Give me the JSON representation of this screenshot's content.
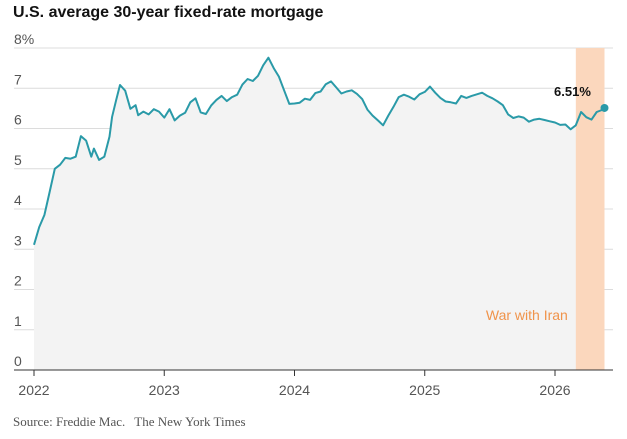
{
  "title": "U.S. average 30-year fixed-rate mortgage",
  "source": {
    "label": "Source: Freddie Mac.",
    "publisher": "The New York Times"
  },
  "chart_data": {
    "type": "line",
    "title": "U.S. average 30-year fixed-rate mortgage",
    "xlabel": "",
    "ylabel": "",
    "ylim": [
      0,
      8
    ],
    "xlim": [
      2022.0,
      2026.5
    ],
    "y_ticks": [
      0,
      1,
      2,
      3,
      4,
      5,
      6,
      7,
      8
    ],
    "y_tick_labels": [
      "0",
      "1",
      "2",
      "3",
      "4",
      "5",
      "6",
      "7",
      "8%"
    ],
    "x_ticks": [
      2022,
      2023,
      2024,
      2025,
      2026
    ],
    "x_tick_labels": [
      "2022",
      "2023",
      "2024",
      "2025",
      "2026"
    ],
    "grid": "horizontal",
    "series": [
      {
        "color": "#2a9aa8",
        "x": [
          2022.0,
          2022.04,
          2022.08,
          2022.12,
          2022.16,
          2022.2,
          2022.24,
          2022.28,
          2022.32,
          2022.36,
          2022.4,
          2022.44,
          2022.46,
          2022.5,
          2022.54,
          2022.58,
          2022.6,
          2022.63,
          2022.66,
          2022.7,
          2022.74,
          2022.78,
          2022.8,
          2022.84,
          2022.88,
          2022.92,
          2022.96,
          2023.0,
          2023.04,
          2023.08,
          2023.12,
          2023.16,
          2023.2,
          2023.24,
          2023.28,
          2023.32,
          2023.36,
          2023.4,
          2023.44,
          2023.48,
          2023.52,
          2023.56,
          2023.6,
          2023.64,
          2023.68,
          2023.72,
          2023.76,
          2023.8,
          2023.84,
          2023.88,
          2023.92,
          2023.96,
          2024.0,
          2024.04,
          2024.08,
          2024.12,
          2024.16,
          2024.2,
          2024.24,
          2024.28,
          2024.32,
          2024.36,
          2024.4,
          2024.44,
          2024.48,
          2024.52,
          2024.56,
          2024.6,
          2024.64,
          2024.68,
          2024.72,
          2024.76,
          2024.8,
          2024.84,
          2024.88,
          2024.92,
          2024.96,
          2025.0,
          2025.04,
          2025.08,
          2025.12,
          2025.16,
          2025.2,
          2025.24,
          2025.28,
          2025.32,
          2025.36,
          2025.4,
          2025.44,
          2025.48,
          2025.52,
          2025.56,
          2025.6,
          2025.64,
          2025.68,
          2025.72,
          2025.76,
          2025.8,
          2025.84,
          2025.88,
          2025.92,
          2025.96,
          2026.0,
          2026.04,
          2026.08,
          2026.12,
          2026.16,
          2026.2,
          2026.24,
          2026.28,
          2026.32,
          2026.36,
          2026.38
        ],
        "values": [
          3.11,
          3.55,
          3.85,
          4.42,
          5.0,
          5.1,
          5.27,
          5.25,
          5.3,
          5.81,
          5.7,
          5.3,
          5.5,
          5.22,
          5.3,
          5.8,
          6.29,
          6.7,
          7.08,
          6.94,
          6.49,
          6.58,
          6.33,
          6.42,
          6.35,
          6.48,
          6.42,
          6.27,
          6.48,
          6.2,
          6.32,
          6.39,
          6.65,
          6.75,
          6.4,
          6.36,
          6.57,
          6.71,
          6.81,
          6.68,
          6.78,
          6.84,
          7.09,
          7.23,
          7.18,
          7.31,
          7.57,
          7.76,
          7.5,
          7.29,
          6.95,
          6.61,
          6.62,
          6.64,
          6.74,
          6.71,
          6.88,
          6.92,
          7.1,
          7.17,
          7.02,
          6.87,
          6.92,
          6.95,
          6.86,
          6.73,
          6.47,
          6.32,
          6.2,
          6.08,
          6.32,
          6.54,
          6.78,
          6.84,
          6.79,
          6.72,
          6.85,
          6.91,
          7.04,
          6.89,
          6.76,
          6.67,
          6.65,
          6.62,
          6.81,
          6.76,
          6.81,
          6.85,
          6.89,
          6.81,
          6.75,
          6.67,
          6.58,
          6.35,
          6.26,
          6.3,
          6.27,
          6.17,
          6.22,
          6.24,
          6.21,
          6.18,
          6.15,
          6.09,
          6.1,
          5.98,
          6.08,
          6.41,
          6.28,
          6.22,
          6.41,
          6.46,
          6.51
        ]
      }
    ],
    "shaded_region": {
      "x0": 2026.16,
      "x1": 2026.38,
      "label": "War with Iran",
      "color": "#fbd7bd",
      "label_color": "#f0934a"
    },
    "last_value_label": "6.51%"
  }
}
